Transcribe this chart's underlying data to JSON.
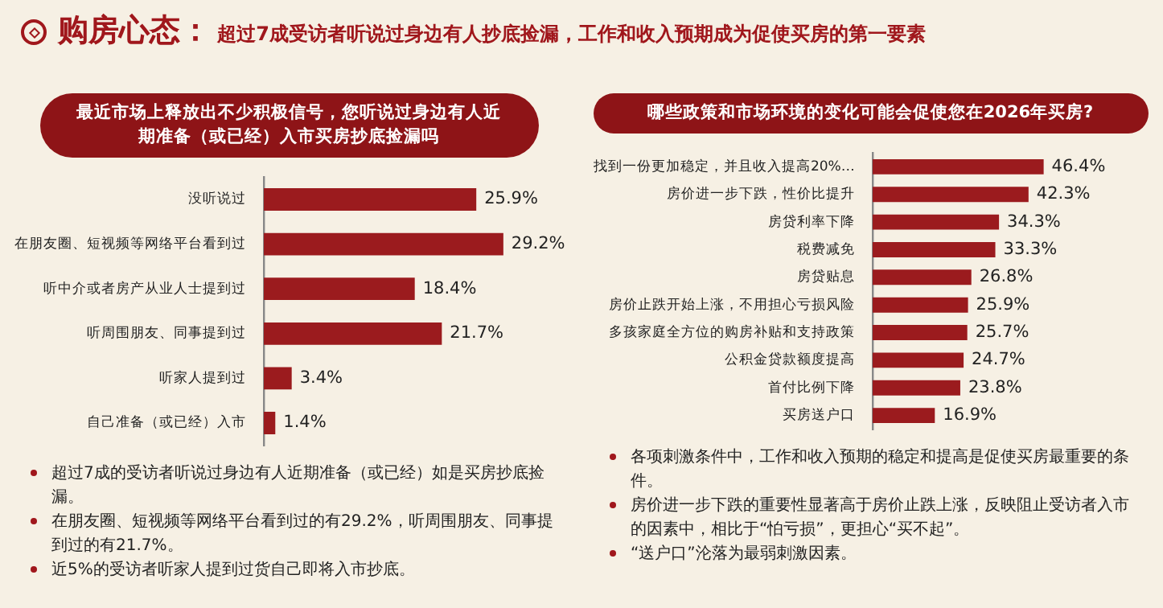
{
  "chart_data": [
    {
      "type": "other",
      "title": "购房心态：",
      "subtitle": "超过7成受访者听说过身边有人抄底捡漏，工作和收入预期成为促使买房的第一要素"
    },
    {
      "type": "bar",
      "orientation": "horizontal",
      "title": "最近市场上释放出不少积极信号，您听说过身边有人近期准备（或已经）入市买房抄底捡漏吗",
      "categories": [
        "没听说过",
        "在朋友圈、短视频等网络平台看到过",
        "听中介或者房产从业人士提到过",
        "听周围朋友、同事提到过",
        "听家人提到过",
        "自己准备（或已经）入市"
      ],
      "values": [
        25.9,
        29.2,
        18.4,
        21.7,
        3.4,
        1.4
      ],
      "value_labels": [
        "25.9%",
        "29.2%",
        "18.4%",
        "21.7%",
        "3.4%",
        "1.4%"
      ],
      "color": "#9b1b1e",
      "tick_labels": "y",
      "annotations": [
        "超过7成的受访者听说过身边有人近期准备（或已经）如是买房抄底捡漏。",
        "在朋友圈、短视频等网络平台看到过的有29.2%，听周围朋友、同事提到过的有21.7%。",
        "近5%的受访者听家人提到过货自己即将入市抄底。"
      ]
    },
    {
      "type": "bar",
      "orientation": "horizontal",
      "title": "哪些政策和市场环境的变化可能会促使您在2026年买房?",
      "categories": [
        "找到一份更加稳定，并且收入提高20%…",
        "房价进一步下跌，性价比提升",
        "房贷利率下降",
        "税费减免",
        "房贷贴息",
        "房价止跌开始上涨，不用担心亏损风险",
        "多孩家庭全方位的购房补贴和支持政策",
        "公积金贷款额度提高",
        "首付比例下降",
        "买房送户口"
      ],
      "values": [
        46.4,
        42.3,
        34.3,
        33.3,
        26.8,
        25.9,
        25.7,
        24.7,
        23.8,
        16.9
      ],
      "value_labels": [
        "46.4%",
        "42.3%",
        "34.3%",
        "33.3%",
        "26.8%",
        "25.9%",
        "25.7%",
        "24.7%",
        "23.8%",
        "16.9%"
      ],
      "color": "#9b1b1e",
      "tick_labels": "y",
      "annotations": [
        "各项刺激条件中，工作和收入预期的稳定和提高是促使买房最重要的条件。",
        "房价进一步下跌的重要性显著高于房价止跌上涨，反映阻止受访者入市的因素中，相比于“怕亏损”，更担心“买不起”。",
        "“送户口”沦落为最弱刺激因素。"
      ]
    }
  ]
}
